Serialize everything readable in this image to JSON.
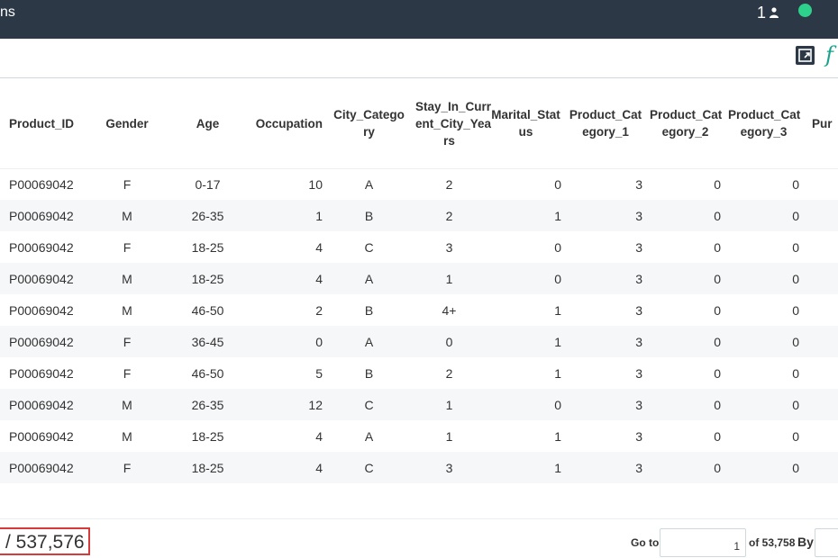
{
  "topbar": {
    "title": "ns",
    "count": "1",
    "user_icon": "user-icon",
    "status_color": "#2ed18b"
  },
  "toolbar": {
    "export_icon": "export-icon",
    "formula_symbol": "f"
  },
  "table": {
    "columns": [
      "Product_ID",
      "Gender",
      "Age",
      "Occupation",
      "City_Catego ry",
      "Stay_In_Curr ent_City_Yea rs",
      "Marital_Stat us",
      "Product_Cat egory_1",
      "Product_Cat egory_2",
      "Product_Cat egory_3",
      "Pur"
    ],
    "rows": [
      [
        "P00069042",
        "F",
        "0-17",
        "10",
        "A",
        "2",
        "0",
        "3",
        "0",
        "0"
      ],
      [
        "P00069042",
        "M",
        "26-35",
        "1",
        "B",
        "2",
        "1",
        "3",
        "0",
        "0"
      ],
      [
        "P00069042",
        "F",
        "18-25",
        "4",
        "C",
        "3",
        "0",
        "3",
        "0",
        "0"
      ],
      [
        "P00069042",
        "M",
        "18-25",
        "4",
        "A",
        "1",
        "0",
        "3",
        "0",
        "0"
      ],
      [
        "P00069042",
        "M",
        "46-50",
        "2",
        "B",
        "4+",
        "1",
        "3",
        "0",
        "0"
      ],
      [
        "P00069042",
        "F",
        "36-45",
        "0",
        "A",
        "0",
        "1",
        "3",
        "0",
        "0"
      ],
      [
        "P00069042",
        "F",
        "46-50",
        "5",
        "B",
        "2",
        "1",
        "3",
        "0",
        "0"
      ],
      [
        "P00069042",
        "M",
        "26-35",
        "12",
        "C",
        "1",
        "0",
        "3",
        "0",
        "0"
      ],
      [
        "P00069042",
        "M",
        "18-25",
        "4",
        "A",
        "1",
        "1",
        "3",
        "0",
        "0"
      ],
      [
        "P00069042",
        "F",
        "18-25",
        "4",
        "C",
        "3",
        "1",
        "3",
        "0",
        "0"
      ]
    ]
  },
  "footer": {
    "row_range": "/ 537,576",
    "goto_label": "Go to",
    "page_value": "1",
    "of_pages": "of 53,758",
    "by_label": "By"
  }
}
